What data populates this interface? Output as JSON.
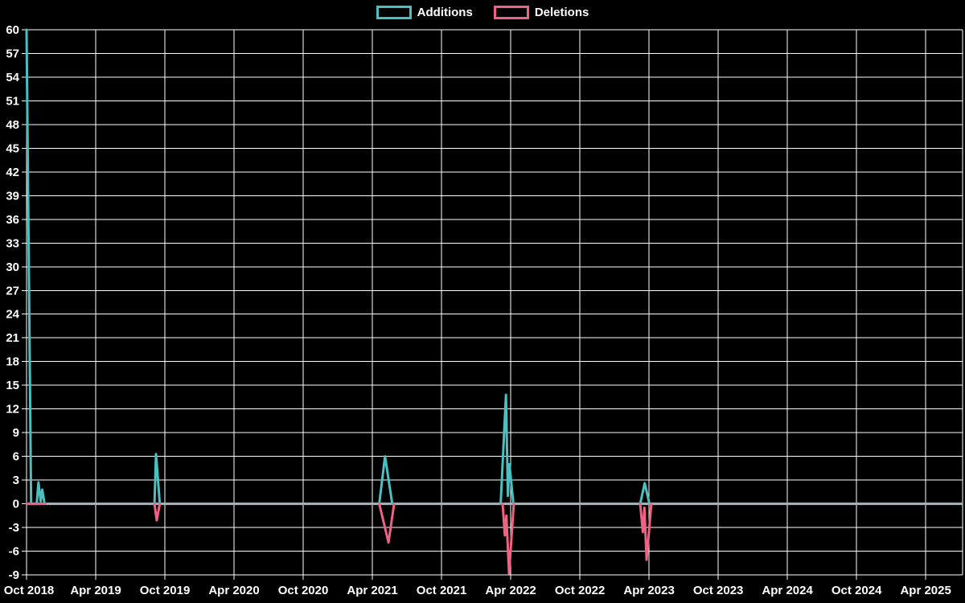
{
  "legend": [
    {
      "label": "Additions",
      "color": "#4bc0c0"
    },
    {
      "label": "Deletions",
      "color": "#ee6283"
    }
  ],
  "chart_data": {
    "type": "line",
    "title": "",
    "background_color": "#000000",
    "text_color": "#ffffff",
    "grid_color": "#ffffff",
    "zero_line_color": "#a2b7c1",
    "grid": true,
    "legend_position": "top",
    "x_axis": {
      "start": "2018-10-01",
      "end": "2025-07-07",
      "tick_interval_months": 6,
      "tick_labels": [
        "Oct 2018",
        "Apr 2019",
        "Oct 2019",
        "Apr 2020",
        "Oct 2020",
        "Apr 2021",
        "Oct 2021",
        "Apr 2022",
        "Oct 2022",
        "Apr 2023",
        "Oct 2023",
        "Apr 2024",
        "Oct 2024",
        "Apr 2025"
      ]
    },
    "y_axis": {
      "min": -9,
      "max": 60,
      "step": 3,
      "tick_labels": [
        60,
        57,
        54,
        51,
        48,
        45,
        42,
        39,
        36,
        33,
        30,
        27,
        24,
        21,
        18,
        15,
        12,
        9,
        6,
        3,
        0,
        -3,
        -6,
        -9
      ]
    },
    "series": [
      {
        "name": "Additions",
        "color": "#4bc0c0",
        "line_width": 3,
        "segments": [
          [
            [
              "2018-10-01",
              60
            ],
            [
              "2018-10-13",
              0
            ],
            [
              "2018-10-28",
              0
            ],
            [
              "2018-11-02",
              2.7
            ],
            [
              "2018-11-08",
              0.3
            ],
            [
              "2018-11-12",
              1.8
            ],
            [
              "2018-11-18",
              0
            ]
          ],
          [
            [
              "2019-09-04",
              0
            ],
            [
              "2019-09-08",
              6.3
            ],
            [
              "2019-09-12",
              3.8
            ],
            [
              "2019-09-18",
              0
            ]
          ],
          [
            [
              "2021-04-19",
              0
            ],
            [
              "2021-05-04",
              6
            ],
            [
              "2021-05-23",
              0
            ]
          ],
          [
            [
              "2022-03-05",
              0
            ],
            [
              "2022-03-19",
              13.8
            ],
            [
              "2022-03-24",
              1
            ],
            [
              "2022-03-28",
              5
            ],
            [
              "2022-04-08",
              0
            ]
          ],
          [
            [
              "2023-03-08",
              0
            ],
            [
              "2023-03-20",
              2.6
            ],
            [
              "2023-04-02",
              0
            ]
          ]
        ]
      },
      {
        "name": "Deletions",
        "color": "#ee6283",
        "line_width": 3,
        "segments": [
          [
            [
              "2018-10-01",
              0
            ],
            [
              "2018-11-20",
              0
            ]
          ],
          [
            [
              "2019-09-04",
              0
            ],
            [
              "2019-09-10",
              -2.1
            ],
            [
              "2019-09-18",
              0
            ]
          ],
          [
            [
              "2021-04-19",
              0
            ],
            [
              "2021-05-13",
              -4.9
            ],
            [
              "2021-05-28",
              0
            ]
          ],
          [
            [
              "2022-03-10",
              0
            ],
            [
              "2022-03-16",
              -4
            ],
            [
              "2022-03-20",
              -1.5
            ],
            [
              "2022-03-27",
              -8.8
            ],
            [
              "2022-04-09",
              0
            ]
          ],
          [
            [
              "2023-03-08",
              0
            ],
            [
              "2023-03-15",
              -3.6
            ],
            [
              "2023-03-19",
              -0.5
            ],
            [
              "2023-03-25",
              -7.1
            ],
            [
              "2023-04-07",
              0
            ]
          ]
        ]
      }
    ]
  }
}
